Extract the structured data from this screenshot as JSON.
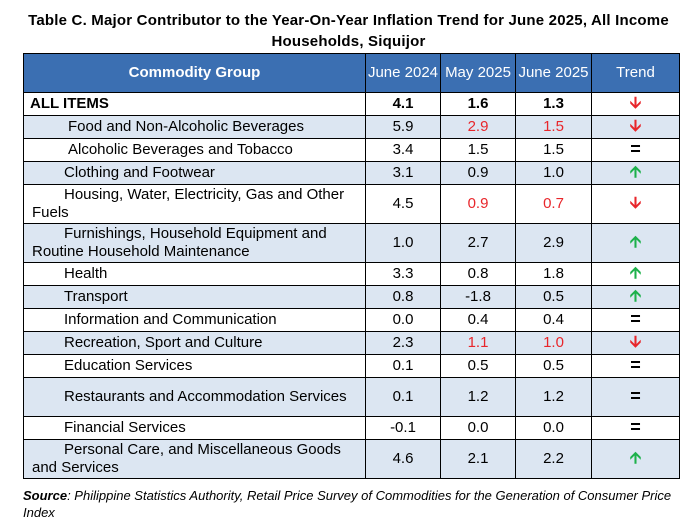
{
  "title": "Table C. Major Contributor to the Year-On-Year Inflation Trend for June 2025, All Income Households, Siquijor",
  "headers": {
    "commodity": "Commodity Group",
    "col1": "June 2024",
    "col2": "May 2025",
    "col3": "June 2025",
    "trend": "Trend"
  },
  "rows": [
    {
      "name": "ALL ITEMS",
      "v1": "4.1",
      "v2": "1.6",
      "v3": "1.3",
      "trend": "down"
    },
    {
      "name": "Food and Non-Alcoholic Beverages",
      "v1": "5.9",
      "v2": "2.9",
      "v3": "1.5",
      "trend": "down"
    },
    {
      "name": "Alcoholic Beverages and Tobacco",
      "v1": "3.4",
      "v2": "1.5",
      "v3": "1.5",
      "trend": "equal"
    },
    {
      "name": "Clothing and Footwear",
      "v1": "3.1",
      "v2": "0.9",
      "v3": "1.0",
      "trend": "up"
    },
    {
      "name": "Housing, Water, Electricity, Gas and Other Fuels",
      "v1": "4.5",
      "v2": "0.9",
      "v3": "0.7",
      "trend": "down"
    },
    {
      "name": "Furnishings, Household Equipment and Routine Household Maintenance",
      "v1": "1.0",
      "v2": "2.7",
      "v3": "2.9",
      "trend": "up"
    },
    {
      "name": "Health",
      "v1": "3.3",
      "v2": "0.8",
      "v3": "1.8",
      "trend": "up"
    },
    {
      "name": "Transport",
      "v1": "0.8",
      "v2": "-1.8",
      "v3": "0.5",
      "trend": "up"
    },
    {
      "name": "Information and Communication",
      "v1": "0.0",
      "v2": "0.4",
      "v3": "0.4",
      "trend": "equal"
    },
    {
      "name": "Recreation, Sport and Culture",
      "v1": "2.3",
      "v2": "1.1",
      "v3": "1.0",
      "trend": "down"
    },
    {
      "name": "Education Services",
      "v1": "0.1",
      "v2": "0.5",
      "v3": "0.5",
      "trend": "equal"
    },
    {
      "name": "Restaurants and Accommodation Services",
      "v1": "0.1",
      "v2": "1.2",
      "v3": "1.2",
      "trend": "equal"
    },
    {
      "name": "Financial Services",
      "v1": "-0.1",
      "v2": "0.0",
      "v3": "0.0",
      "trend": "equal"
    },
    {
      "name": "Personal Care, and Miscellaneous Goods and Services",
      "v1": "4.6",
      "v2": "2.1",
      "v3": "2.2",
      "trend": "up"
    }
  ],
  "trend_glyphs": {
    "down": "🡫",
    "up": "🡩",
    "equal": "="
  },
  "colors": {
    "header_bg": "#3b6fb2",
    "shade_bg": "#dce6f2",
    "red": "#e8262b",
    "green": "#1db14b"
  },
  "source_label": "Source",
  "source_text": ": Philippine Statistics Authority, Retail Price Survey of Commodities for the Generation of Consumer Price Index"
}
